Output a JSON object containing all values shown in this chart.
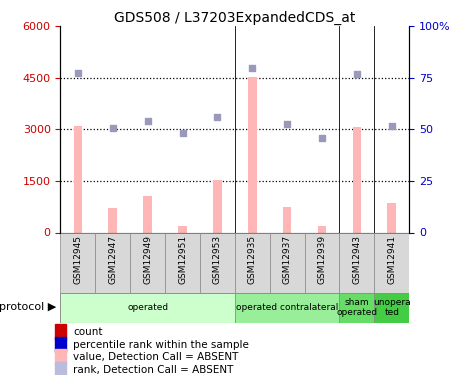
{
  "title": "GDS508 / L37203ExpandedCDS_at",
  "samples": [
    "GSM12945",
    "GSM12947",
    "GSM12949",
    "GSM12951",
    "GSM12953",
    "GSM12935",
    "GSM12937",
    "GSM12939",
    "GSM12943",
    "GSM12941"
  ],
  "bar_values": [
    3100,
    700,
    1050,
    200,
    1530,
    4520,
    750,
    200,
    3060,
    870
  ],
  "scatter_values": [
    4650,
    3050,
    3250,
    2900,
    3370,
    4800,
    3150,
    2750,
    4620,
    3100
  ],
  "ylim_left": [
    0,
    6000
  ],
  "ylim_right": [
    0,
    100
  ],
  "yticks_left": [
    0,
    1500,
    3000,
    4500,
    6000
  ],
  "ytick_labels_left": [
    "0",
    "1500",
    "3000",
    "4500",
    "6000"
  ],
  "yticks_right": [
    0,
    25,
    50,
    75,
    100
  ],
  "ytick_labels_right": [
    "0",
    "25",
    "50",
    "75",
    "100%"
  ],
  "bar_color": "#ffb6b6",
  "scatter_color": "#9999bb",
  "count_color": "#cc0000",
  "rank_color": "#0000cc",
  "dotted_lines": [
    1500,
    3000,
    4500
  ],
  "protocol_groups": [
    {
      "label": "operated",
      "start": 0,
      "end": 5,
      "color": "#ccffcc"
    },
    {
      "label": "operated contralateral",
      "start": 5,
      "end": 8,
      "color": "#99ee99"
    },
    {
      "label": "sham\noperated",
      "start": 8,
      "end": 9,
      "color": "#66dd66"
    },
    {
      "label": "unopera\nted",
      "start": 9,
      "end": 10,
      "color": "#44cc44"
    }
  ],
  "legend_items": [
    {
      "label": "count",
      "color": "#cc0000"
    },
    {
      "label": "percentile rank within the sample",
      "color": "#0000cc"
    },
    {
      "label": "value, Detection Call = ABSENT",
      "color": "#ffb6b6"
    },
    {
      "label": "rank, Detection Call = ABSENT",
      "color": "#bbbbdd"
    }
  ],
  "bar_width": 0.25
}
